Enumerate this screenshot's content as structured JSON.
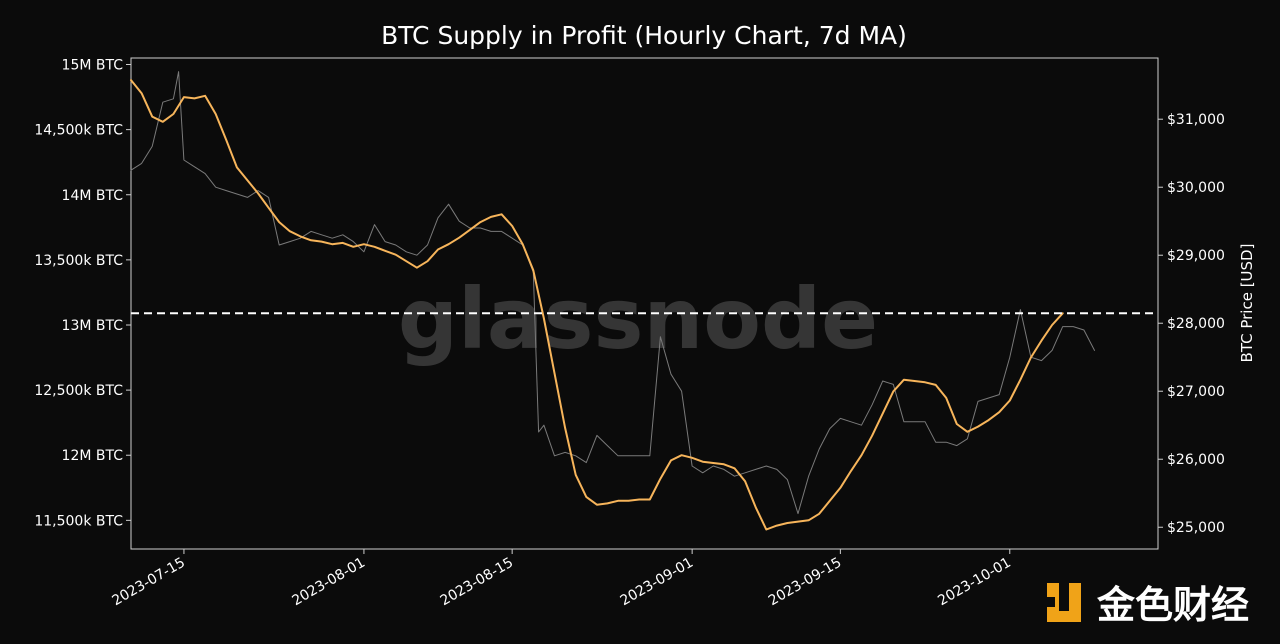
{
  "chart_data": {
    "type": "line",
    "title": "BTC Supply in Profit (Hourly Chart, 7d MA)",
    "xlabel": "",
    "ylabel_left": "",
    "ylabel_right": "BTC Price [USD]",
    "x_ticks": [
      "2023-07-15",
      "2023-08-01",
      "2023-08-15",
      "2023-09-01",
      "2023-09-15",
      "2023-10-01"
    ],
    "y_left_ticks": [
      {
        "value": 11500000,
        "label": "11,500k BTC"
      },
      {
        "value": 12000000,
        "label": "12M BTC"
      },
      {
        "value": 12500000,
        "label": "12,500k BTC"
      },
      {
        "value": 13000000,
        "label": "13M BTC"
      },
      {
        "value": 13500000,
        "label": "13,500k BTC"
      },
      {
        "value": 14000000,
        "label": "14M BTC"
      },
      {
        "value": 14500000,
        "label": "14,500k BTC"
      },
      {
        "value": 15000000,
        "label": "15M BTC"
      }
    ],
    "y_right_ticks": [
      {
        "value": 25000,
        "label": "$25,000"
      },
      {
        "value": 26000,
        "label": "$26,000"
      },
      {
        "value": 27000,
        "label": "$27,000"
      },
      {
        "value": 28000,
        "label": "$28,000"
      },
      {
        "value": 29000,
        "label": "$29,000"
      },
      {
        "value": 30000,
        "label": "$30,000"
      },
      {
        "value": 31000,
        "label": "$31,000"
      }
    ],
    "x_range": [
      "2023-07-10",
      "2023-10-15"
    ],
    "y_left_range": [
      11280000,
      15050000
    ],
    "y_right_range": [
      24680000,
      31900000
    ],
    "grid": false,
    "reference_line": {
      "axis": "left",
      "value": 13090000,
      "style": "dashed"
    },
    "series": [
      {
        "axis": "right",
        "color": "#7a7a7a",
        "points": [
          [
            "2023-07-10",
            30250
          ],
          [
            "2023-07-11",
            30350
          ],
          [
            "2023-07-12",
            30600
          ],
          [
            "2023-07-13",
            31250
          ],
          [
            "2023-07-14",
            31300
          ],
          [
            "2023-07-14T12",
            31700
          ],
          [
            "2023-07-15",
            30400
          ],
          [
            "2023-07-16",
            30300
          ],
          [
            "2023-07-17",
            30200
          ],
          [
            "2023-07-18",
            30000
          ],
          [
            "2023-07-19",
            29950
          ],
          [
            "2023-07-20",
            29900
          ],
          [
            "2023-07-21",
            29850
          ],
          [
            "2023-07-22",
            29950
          ],
          [
            "2023-07-23",
            29850
          ],
          [
            "2023-07-24",
            29150
          ],
          [
            "2023-07-25",
            29200
          ],
          [
            "2023-07-26",
            29250
          ],
          [
            "2023-07-27",
            29350
          ],
          [
            "2023-07-28",
            29300
          ],
          [
            "2023-07-29",
            29250
          ],
          [
            "2023-07-30",
            29300
          ],
          [
            "2023-07-31",
            29200
          ],
          [
            "2023-08-01",
            29050
          ],
          [
            "2023-08-02",
            29450
          ],
          [
            "2023-08-03",
            29200
          ],
          [
            "2023-08-04",
            29150
          ],
          [
            "2023-08-05",
            29050
          ],
          [
            "2023-08-06",
            29000
          ],
          [
            "2023-08-07",
            29150
          ],
          [
            "2023-08-08",
            29550
          ],
          [
            "2023-08-09",
            29750
          ],
          [
            "2023-08-10",
            29500
          ],
          [
            "2023-08-11",
            29400
          ],
          [
            "2023-08-12",
            29400
          ],
          [
            "2023-08-13",
            29350
          ],
          [
            "2023-08-14",
            29350
          ],
          [
            "2023-08-15",
            29250
          ],
          [
            "2023-08-16",
            29150
          ],
          [
            "2023-08-17",
            28750
          ],
          [
            "2023-08-17T12",
            26400
          ],
          [
            "2023-08-18",
            26500
          ],
          [
            "2023-08-19",
            26050
          ],
          [
            "2023-08-20",
            26100
          ],
          [
            "2023-08-21",
            26050
          ],
          [
            "2023-08-22",
            25950
          ],
          [
            "2023-08-23",
            26350
          ],
          [
            "2023-08-24",
            26200
          ],
          [
            "2023-08-25",
            26050
          ],
          [
            "2023-08-26",
            26050
          ],
          [
            "2023-08-27",
            26050
          ],
          [
            "2023-08-28",
            26050
          ],
          [
            "2023-08-29",
            27800
          ],
          [
            "2023-08-30",
            27250
          ],
          [
            "2023-08-31",
            27000
          ],
          [
            "2023-09-01",
            25900
          ],
          [
            "2023-09-02",
            25800
          ],
          [
            "2023-09-03",
            25900
          ],
          [
            "2023-09-04",
            25850
          ],
          [
            "2023-09-05",
            25750
          ],
          [
            "2023-09-06",
            25800
          ],
          [
            "2023-09-07",
            25850
          ],
          [
            "2023-09-08",
            25900
          ],
          [
            "2023-09-09",
            25850
          ],
          [
            "2023-09-10",
            25700
          ],
          [
            "2023-09-11",
            25200
          ],
          [
            "2023-09-12",
            25750
          ],
          [
            "2023-09-13",
            26150
          ],
          [
            "2023-09-14",
            26450
          ],
          [
            "2023-09-15",
            26600
          ],
          [
            "2023-09-16",
            26550
          ],
          [
            "2023-09-17",
            26500
          ],
          [
            "2023-09-18",
            26800
          ],
          [
            "2023-09-19",
            27150
          ],
          [
            "2023-09-20",
            27100
          ],
          [
            "2023-09-21",
            26550
          ],
          [
            "2023-09-22",
            26550
          ],
          [
            "2023-09-23",
            26550
          ],
          [
            "2023-09-24",
            26250
          ],
          [
            "2023-09-25",
            26250
          ],
          [
            "2023-09-26",
            26200
          ],
          [
            "2023-09-27",
            26300
          ],
          [
            "2023-09-28",
            26850
          ],
          [
            "2023-09-29",
            26900
          ],
          [
            "2023-09-30",
            26950
          ],
          [
            "2023-10-01",
            27500
          ],
          [
            "2023-10-02",
            28200
          ],
          [
            "2023-10-03",
            27500
          ],
          [
            "2023-10-04",
            27450
          ],
          [
            "2023-10-05",
            27600
          ],
          [
            "2023-10-06",
            27950
          ],
          [
            "2023-10-07",
            27950
          ],
          [
            "2023-10-08",
            27900
          ],
          [
            "2023-10-09",
            27600
          ]
        ]
      },
      {
        "axis": "left",
        "color": "#f7b55b",
        "points": [
          [
            "2023-07-10",
            14880000
          ],
          [
            "2023-07-11",
            14780000
          ],
          [
            "2023-07-12",
            14600000
          ],
          [
            "2023-07-13",
            14560000
          ],
          [
            "2023-07-14",
            14620000
          ],
          [
            "2023-07-15",
            14750000
          ],
          [
            "2023-07-16",
            14740000
          ],
          [
            "2023-07-17",
            14760000
          ],
          [
            "2023-07-18",
            14620000
          ],
          [
            "2023-07-19",
            14420000
          ],
          [
            "2023-07-20",
            14210000
          ],
          [
            "2023-07-21",
            14110000
          ],
          [
            "2023-07-22",
            14010000
          ],
          [
            "2023-07-23",
            13900000
          ],
          [
            "2023-07-24",
            13790000
          ],
          [
            "2023-07-25",
            13720000
          ],
          [
            "2023-07-26",
            13680000
          ],
          [
            "2023-07-27",
            13650000
          ],
          [
            "2023-07-28",
            13640000
          ],
          [
            "2023-07-29",
            13620000
          ],
          [
            "2023-07-30",
            13630000
          ],
          [
            "2023-07-31",
            13600000
          ],
          [
            "2023-08-01",
            13620000
          ],
          [
            "2023-08-02",
            13600000
          ],
          [
            "2023-08-03",
            13570000
          ],
          [
            "2023-08-04",
            13540000
          ],
          [
            "2023-08-05",
            13490000
          ],
          [
            "2023-08-06",
            13440000
          ],
          [
            "2023-08-07",
            13490000
          ],
          [
            "2023-08-08",
            13580000
          ],
          [
            "2023-08-09",
            13620000
          ],
          [
            "2023-08-10",
            13670000
          ],
          [
            "2023-08-11",
            13730000
          ],
          [
            "2023-08-12",
            13790000
          ],
          [
            "2023-08-13",
            13830000
          ],
          [
            "2023-08-14",
            13850000
          ],
          [
            "2023-08-15",
            13760000
          ],
          [
            "2023-08-16",
            13620000
          ],
          [
            "2023-08-17",
            13420000
          ],
          [
            "2023-08-18",
            13050000
          ],
          [
            "2023-08-19",
            12630000
          ],
          [
            "2023-08-20",
            12210000
          ],
          [
            "2023-08-21",
            11850000
          ],
          [
            "2023-08-22",
            11680000
          ],
          [
            "2023-08-23",
            11620000
          ],
          [
            "2023-08-24",
            11630000
          ],
          [
            "2023-08-25",
            11650000
          ],
          [
            "2023-08-26",
            11650000
          ],
          [
            "2023-08-27",
            11660000
          ],
          [
            "2023-08-28",
            11660000
          ],
          [
            "2023-08-29",
            11820000
          ],
          [
            "2023-08-30",
            11960000
          ],
          [
            "2023-08-31",
            12000000
          ],
          [
            "2023-09-01",
            11980000
          ],
          [
            "2023-09-02",
            11950000
          ],
          [
            "2023-09-03",
            11940000
          ],
          [
            "2023-09-04",
            11930000
          ],
          [
            "2023-09-05",
            11900000
          ],
          [
            "2023-09-06",
            11800000
          ],
          [
            "2023-09-07",
            11600000
          ],
          [
            "2023-09-08",
            11430000
          ],
          [
            "2023-09-09",
            11460000
          ],
          [
            "2023-09-10",
            11480000
          ],
          [
            "2023-09-11",
            11490000
          ],
          [
            "2023-09-12",
            11500000
          ],
          [
            "2023-09-13",
            11550000
          ],
          [
            "2023-09-14",
            11650000
          ],
          [
            "2023-09-15",
            11750000
          ],
          [
            "2023-09-16",
            11880000
          ],
          [
            "2023-09-17",
            12000000
          ],
          [
            "2023-09-18",
            12150000
          ],
          [
            "2023-09-19",
            12320000
          ],
          [
            "2023-09-20",
            12490000
          ],
          [
            "2023-09-21",
            12580000
          ],
          [
            "2023-09-22",
            12570000
          ],
          [
            "2023-09-23",
            12560000
          ],
          [
            "2023-09-24",
            12540000
          ],
          [
            "2023-09-25",
            12440000
          ],
          [
            "2023-09-26",
            12240000
          ],
          [
            "2023-09-27",
            12180000
          ],
          [
            "2023-09-28",
            12220000
          ],
          [
            "2023-09-29",
            12270000
          ],
          [
            "2023-09-30",
            12330000
          ],
          [
            "2023-10-01",
            12420000
          ],
          [
            "2023-10-02",
            12580000
          ],
          [
            "2023-10-03",
            12750000
          ],
          [
            "2023-10-04",
            12880000
          ],
          [
            "2023-10-05",
            13000000
          ],
          [
            "2023-10-06",
            13090000
          ]
        ]
      }
    ]
  },
  "watermark": {
    "text": "glassnode"
  },
  "badge": {
    "logo_icon": "jinse-logo-icon",
    "text": "金色财经"
  },
  "colors": {
    "background": "#0b0b0b",
    "text": "#ffffff",
    "price": "#7a7a7a",
    "supply": "#f7b55b",
    "reference": "#ffffff"
  }
}
